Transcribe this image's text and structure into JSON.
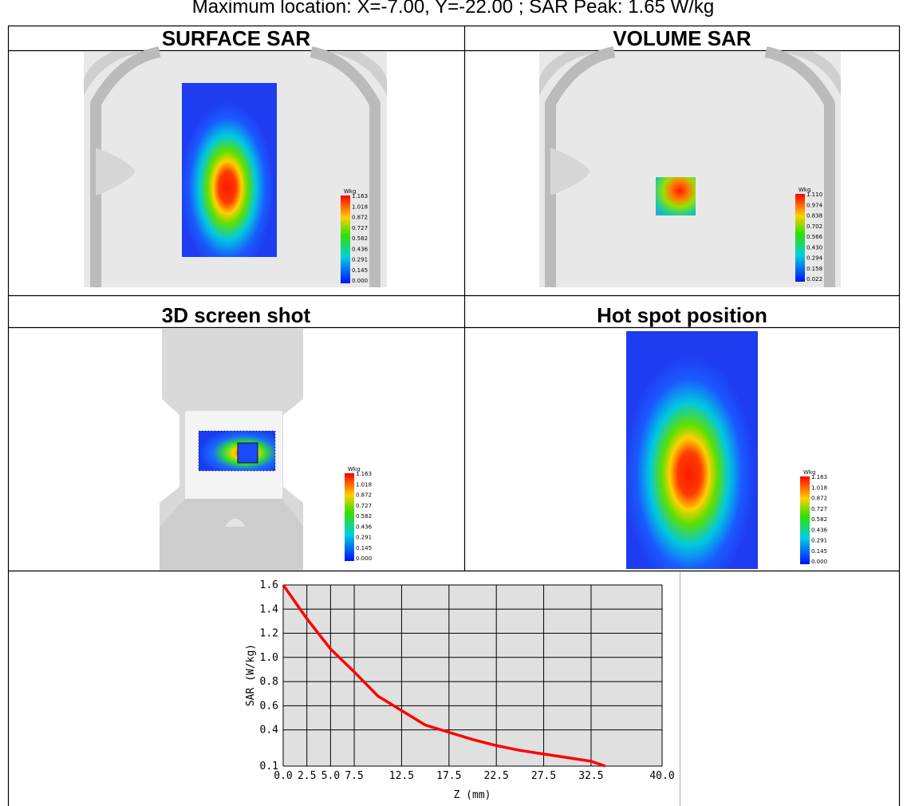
{
  "header": {
    "title": "Maximum location: X=-7.00, Y=-22.00 ; SAR Peak: 1.65 W/kg"
  },
  "panels": [
    {
      "title": "SURFACE SAR",
      "unit": "Wkg",
      "scale": [
        "1.163",
        "1.018",
        "0.872",
        "0.727",
        "0.582",
        "0.436",
        "0.291",
        "0.145",
        "0.000"
      ]
    },
    {
      "title": "VOLUME SAR",
      "unit": "Wkg",
      "scale": [
        "1.110",
        "0.974",
        "0.838",
        "0.702",
        "0.566",
        "0.430",
        "0.294",
        "0.158",
        "0.022"
      ]
    },
    {
      "title": "3D screen shot",
      "unit": "Wkg",
      "scale": [
        "1.163",
        "1.018",
        "0.872",
        "0.727",
        "0.582",
        "0.436",
        "0.291",
        "0.145",
        "0.000"
      ]
    },
    {
      "title": "Hot spot position",
      "unit": "Wkg",
      "scale": [
        "1.163",
        "1.018",
        "0.872",
        "0.727",
        "0.582",
        "0.436",
        "0.291",
        "0.145",
        "0.000"
      ]
    }
  ],
  "chart_data": {
    "type": "line",
    "x_label": "Z (mm)",
    "y_label": "SAR (W/kg)",
    "x": [
      0,
      2.5,
      5,
      7.5,
      10,
      12.5,
      15,
      17.5,
      20,
      22.5,
      25,
      27.5,
      30,
      32.5,
      34
    ],
    "series": [
      {
        "color": "#ff0000",
        "values": [
          1.6,
          1.32,
          1.07,
          0.88,
          0.68,
          0.56,
          0.44,
          0.38,
          0.32,
          0.27,
          0.23,
          0.2,
          0.17,
          0.14,
          0.1
        ]
      }
    ],
    "xlim": [
      0,
      40
    ],
    "ylim": [
      0.1,
      1.6
    ],
    "xticks": [
      {
        "value": 0,
        "label": "0.0"
      },
      2.5,
      {
        "value": 5,
        "label": "5.0"
      },
      7.5,
      12.5,
      17.5,
      22.5,
      27.5,
      32.5,
      {
        "value": 40,
        "label": "40.0"
      }
    ],
    "yticks": [
      0.1,
      0.4,
      0.6,
      0.8,
      {
        "value": 1,
        "label": "1.0"
      },
      1.2,
      1.4,
      1.6
    ],
    "grid": true
  }
}
